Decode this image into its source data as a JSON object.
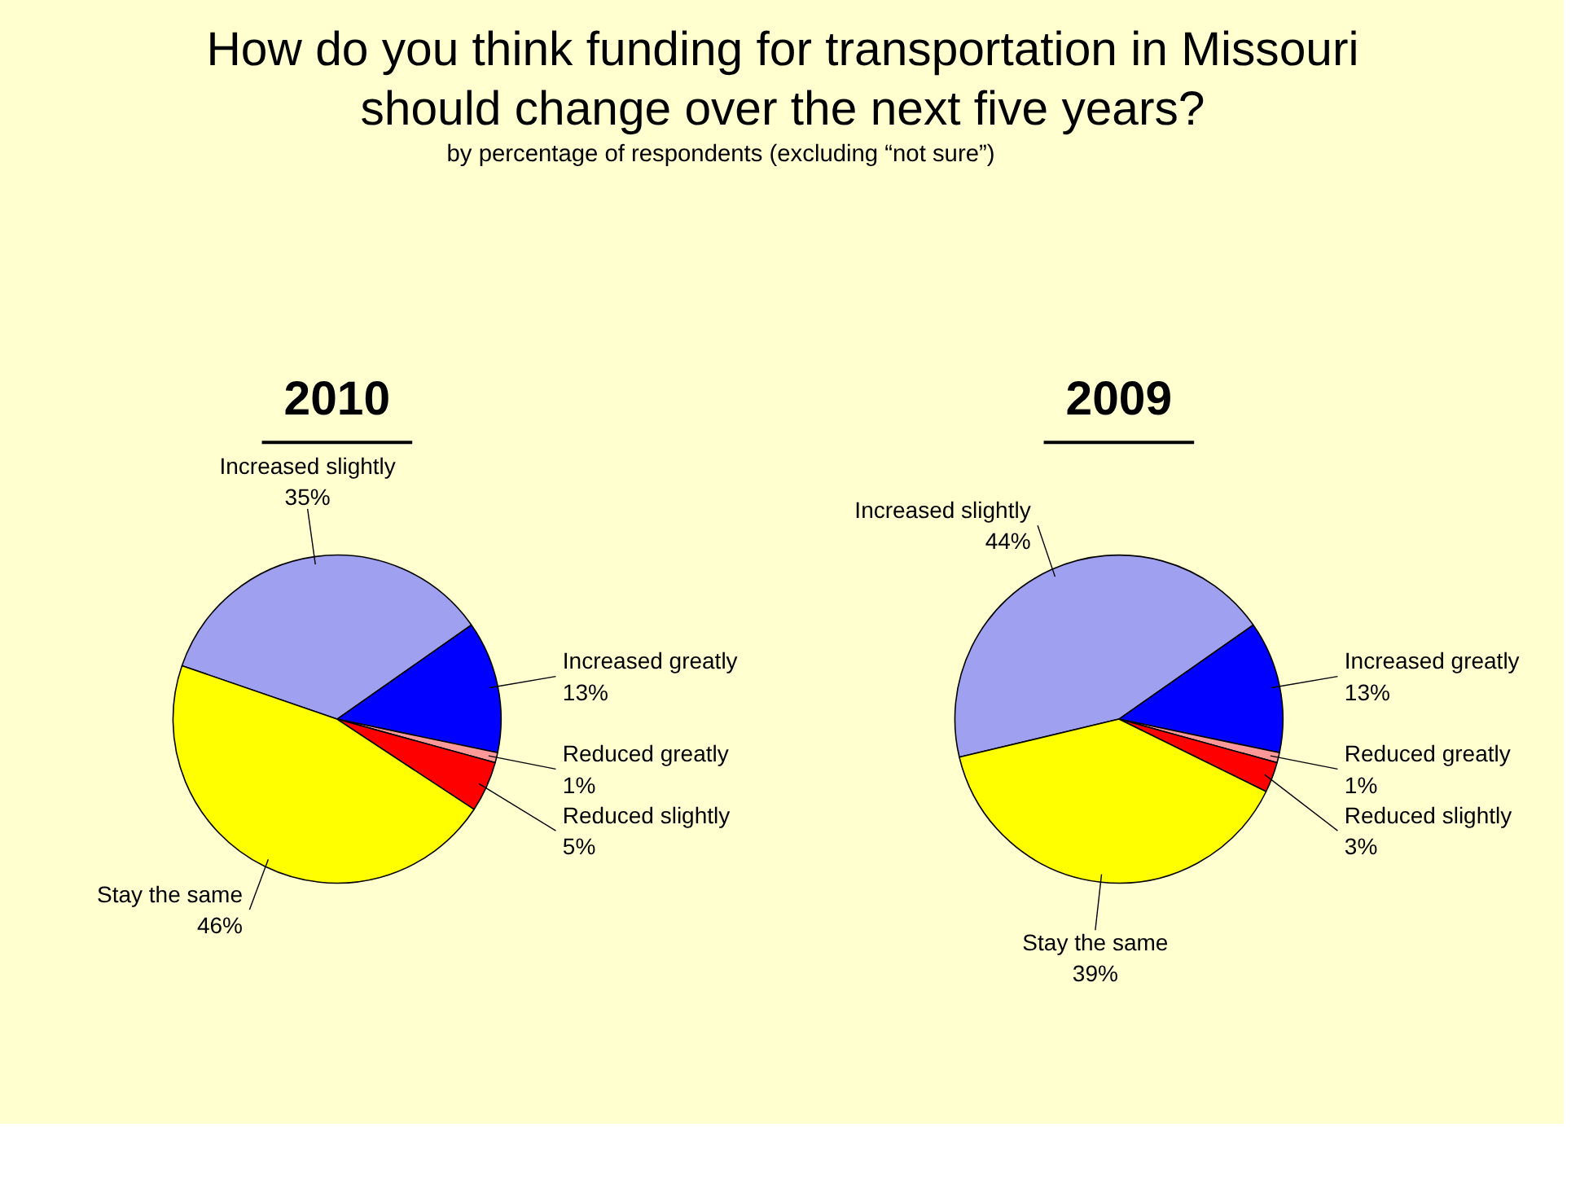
{
  "chart_data": [
    {
      "type": "other",
      "title": "How do you think funding for transportation in Missouri should change over the next five years?",
      "subtitle": "by percentage of respondents (excluding “not sure”)"
    },
    {
      "type": "pie",
      "title": "2010",
      "categories": [
        "Increased slightly",
        "Increased greatly",
        "Reduced greatly",
        "Reduced slightly",
        "Stay the same"
      ],
      "values": [
        35,
        13,
        1,
        5,
        46
      ],
      "value_labels": [
        "35%",
        "13%",
        "1%",
        "5%",
        "46%"
      ],
      "colors": [
        "#a0a0f0",
        "#0000ff",
        "#ff9999",
        "#ff0000",
        "#ffff00"
      ]
    },
    {
      "type": "pie",
      "title": "2009",
      "categories": [
        "Increased slightly",
        "Increased greatly",
        "Reduced greatly",
        "Reduced slightly",
        "Stay the same"
      ],
      "values": [
        44,
        13,
        1,
        3,
        39
      ],
      "value_labels": [
        "44%",
        "13%",
        "1%",
        "3%",
        "39%"
      ],
      "colors": [
        "#a0a0f0",
        "#0000ff",
        "#ff9999",
        "#ff0000",
        "#ffff00"
      ]
    }
  ]
}
